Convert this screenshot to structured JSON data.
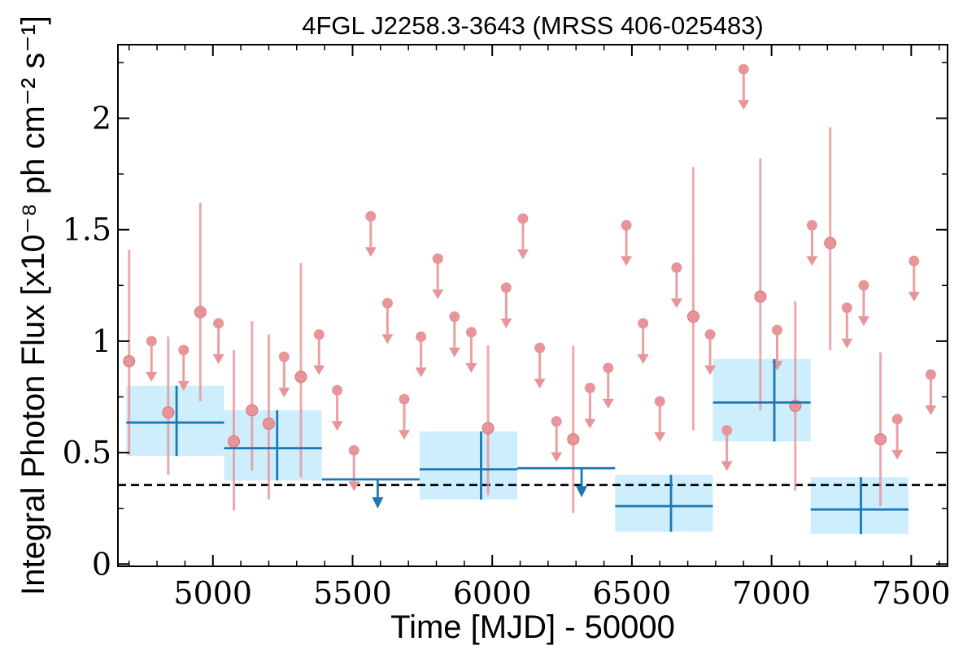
{
  "chart_data": {
    "type": "scatter",
    "title": "4FGL J2258.3-3643 (MRSS 406-025483)",
    "xlabel": "Time [MJD] - 50000",
    "ylabel": "Integral Photon Flux [x10⁻⁸ ph cm⁻² s⁻¹]",
    "xlim": [
      4660,
      7630
    ],
    "ylim": [
      -0.01,
      2.33
    ],
    "xticks": [
      5000,
      5500,
      6000,
      6500,
      7000,
      7500
    ],
    "xtick_labels": [
      "5000",
      "5500",
      "6000",
      "6500",
      "7000",
      "7500"
    ],
    "yticks": [
      0,
      0.5,
      1,
      1.5,
      2
    ],
    "ytick_labels": [
      "0",
      "0.5",
      "1",
      "1.5",
      "2"
    ],
    "grid": false,
    "colors": {
      "short_bins": "#e8959a",
      "long_bins": "#1f77b4",
      "long_bins_band": "#cdeefd",
      "reference_line": "#000000"
    },
    "reference_line": {
      "y": 0.355,
      "style": "dashed"
    },
    "series": [
      {
        "kind": "short_bins_detections",
        "points": [
          {
            "x": 4700,
            "y": 0.91,
            "ylo": 0.49,
            "yhi": 1.41
          },
          {
            "x": 4840,
            "y": 0.68,
            "ylo": 0.4,
            "yhi": 1.02
          },
          {
            "x": 4955,
            "y": 1.13,
            "ylo": 0.73,
            "yhi": 1.62
          },
          {
            "x": 5075,
            "y": 0.55,
            "ylo": 0.24,
            "yhi": 0.96
          },
          {
            "x": 5140,
            "y": 0.69,
            "ylo": 0.42,
            "yhi": 1.09
          },
          {
            "x": 5200,
            "y": 0.63,
            "ylo": 0.29,
            "yhi": 1.03
          },
          {
            "x": 5315,
            "y": 0.84,
            "ylo": 0.39,
            "yhi": 1.35
          },
          {
            "x": 5985,
            "y": 0.61,
            "ylo": 0.31,
            "yhi": 0.98
          },
          {
            "x": 6290,
            "y": 0.56,
            "ylo": 0.23,
            "yhi": 0.98
          },
          {
            "x": 6720,
            "y": 1.11,
            "ylo": 0.6,
            "yhi": 1.78
          },
          {
            "x": 6960,
            "y": 1.2,
            "ylo": 0.69,
            "yhi": 1.82
          },
          {
            "x": 7085,
            "y": 0.71,
            "ylo": 0.33,
            "yhi": 1.18
          },
          {
            "x": 7210,
            "y": 1.44,
            "ylo": 0.96,
            "yhi": 1.96
          },
          {
            "x": 7390,
            "y": 0.56,
            "ylo": 0.26,
            "yhi": 0.95
          }
        ]
      },
      {
        "kind": "short_bins_upper_limits",
        "points": [
          {
            "x": 4780,
            "y": 1.0
          },
          {
            "x": 4895,
            "y": 0.96
          },
          {
            "x": 5020,
            "y": 1.08
          },
          {
            "x": 5255,
            "y": 0.93
          },
          {
            "x": 5380,
            "y": 1.03
          },
          {
            "x": 5445,
            "y": 0.78
          },
          {
            "x": 5505,
            "y": 0.51
          },
          {
            "x": 5565,
            "y": 1.56
          },
          {
            "x": 5625,
            "y": 1.17
          },
          {
            "x": 5685,
            "y": 0.74
          },
          {
            "x": 5745,
            "y": 1.02
          },
          {
            "x": 5805,
            "y": 1.37
          },
          {
            "x": 5865,
            "y": 1.11
          },
          {
            "x": 5925,
            "y": 1.04
          },
          {
            "x": 6050,
            "y": 1.24
          },
          {
            "x": 6110,
            "y": 1.55
          },
          {
            "x": 6170,
            "y": 0.97
          },
          {
            "x": 6230,
            "y": 0.64
          },
          {
            "x": 6350,
            "y": 0.79
          },
          {
            "x": 6415,
            "y": 0.88
          },
          {
            "x": 6480,
            "y": 1.52
          },
          {
            "x": 6540,
            "y": 1.08
          },
          {
            "x": 6600,
            "y": 0.73
          },
          {
            "x": 6660,
            "y": 1.33
          },
          {
            "x": 6780,
            "y": 1.03
          },
          {
            "x": 6840,
            "y": 0.6
          },
          {
            "x": 6900,
            "y": 2.22
          },
          {
            "x": 7020,
            "y": 1.05
          },
          {
            "x": 7145,
            "y": 1.52
          },
          {
            "x": 7270,
            "y": 1.15
          },
          {
            "x": 7330,
            "y": 1.25
          },
          {
            "x": 7450,
            "y": 0.65
          },
          {
            "x": 7510,
            "y": 1.36
          },
          {
            "x": 7570,
            "y": 0.85
          }
        ]
      },
      {
        "kind": "long_bins_detections",
        "bins": [
          {
            "x0": 4690,
            "x1": 5040,
            "xc": 4870,
            "y": 0.635,
            "ylo": 0.485,
            "yhi": 0.8
          },
          {
            "x0": 5040,
            "x1": 5390,
            "xc": 5230,
            "y": 0.52,
            "ylo": 0.375,
            "yhi": 0.69
          },
          {
            "x0": 5740,
            "x1": 6090,
            "xc": 5960,
            "y": 0.425,
            "ylo": 0.29,
            "yhi": 0.595
          },
          {
            "x0": 6440,
            "x1": 6790,
            "xc": 6640,
            "y": 0.26,
            "ylo": 0.145,
            "yhi": 0.4
          },
          {
            "x0": 6790,
            "x1": 7140,
            "xc": 7010,
            "y": 0.725,
            "ylo": 0.55,
            "yhi": 0.92
          },
          {
            "x0": 7140,
            "x1": 7490,
            "xc": 7320,
            "y": 0.245,
            "ylo": 0.135,
            "yhi": 0.39
          }
        ]
      },
      {
        "kind": "long_bins_upper_limits",
        "bins": [
          {
            "x0": 5390,
            "x1": 5740,
            "xc": 5590,
            "y": 0.38
          },
          {
            "x0": 6090,
            "x1": 6440,
            "xc": 6320,
            "y": 0.43
          }
        ]
      }
    ]
  }
}
